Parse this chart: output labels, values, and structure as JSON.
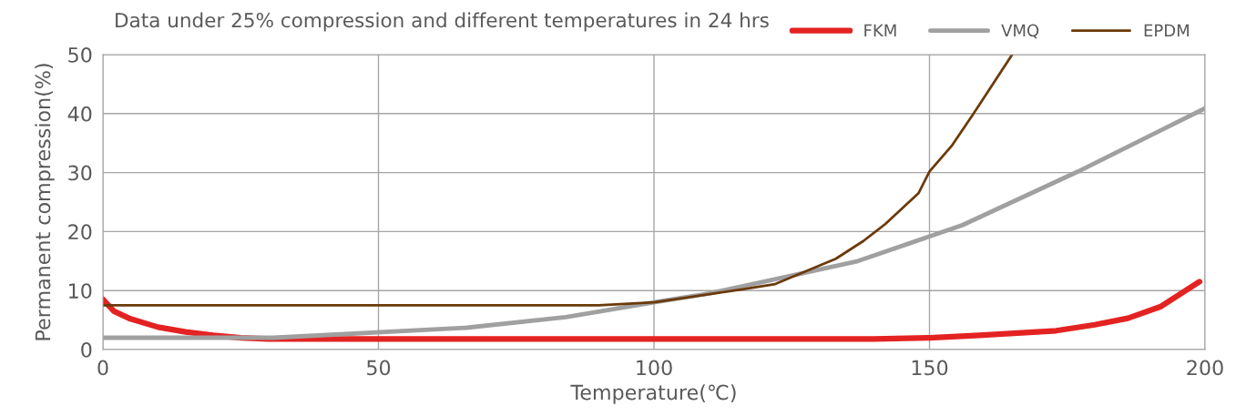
{
  "chart_data": {
    "type": "line",
    "title": "Data under 25% compression and different temperatures in 24 hrs",
    "xlabel": "Temperature(℃)",
    "ylabel": "Permanent compression(%)",
    "xlim": [
      0,
      200
    ],
    "xticks": [
      0,
      50,
      100,
      150,
      200
    ],
    "ylim": [
      0,
      50
    ],
    "yticks": [
      0,
      10,
      20,
      30,
      40,
      50
    ],
    "grid": true,
    "legend": "top right",
    "marker": "none",
    "line_style": "solid",
    "series": [
      {
        "name": "FKM",
        "color": "#e32322",
        "x": [
          0,
          2,
          5,
          10,
          15,
          20,
          25,
          30,
          60,
          100,
          140,
          150,
          159,
          173,
          180,
          186,
          192,
          199
        ],
        "values": [
          8.5,
          6.5,
          5.2,
          3.8,
          3.0,
          2.4,
          2.0,
          1.8,
          1.8,
          1.8,
          1.8,
          2.0,
          2.4,
          3.2,
          4.2,
          5.3,
          7.3,
          11.5
        ]
      },
      {
        "name": "VMQ",
        "color": "#a0a0a0",
        "x": [
          0,
          31,
          66,
          84,
          100,
          110,
          120,
          137,
          156,
          177,
          200
        ],
        "values": [
          2.0,
          2.0,
          3.7,
          5.5,
          8.0,
          9.5,
          11.5,
          15.0,
          21.1,
          30.2,
          40.9
        ]
      },
      {
        "name": "EPDM",
        "color": "#6b3a0a",
        "x": [
          0,
          90,
          100,
          116,
          122,
          133,
          138,
          142,
          148,
          150,
          154,
          158,
          165
        ],
        "values": [
          7.5,
          7.5,
          8.0,
          10.2,
          11.1,
          15.4,
          18.4,
          21.3,
          26.5,
          30.2,
          34.5,
          40.0,
          50.0
        ]
      }
    ]
  }
}
